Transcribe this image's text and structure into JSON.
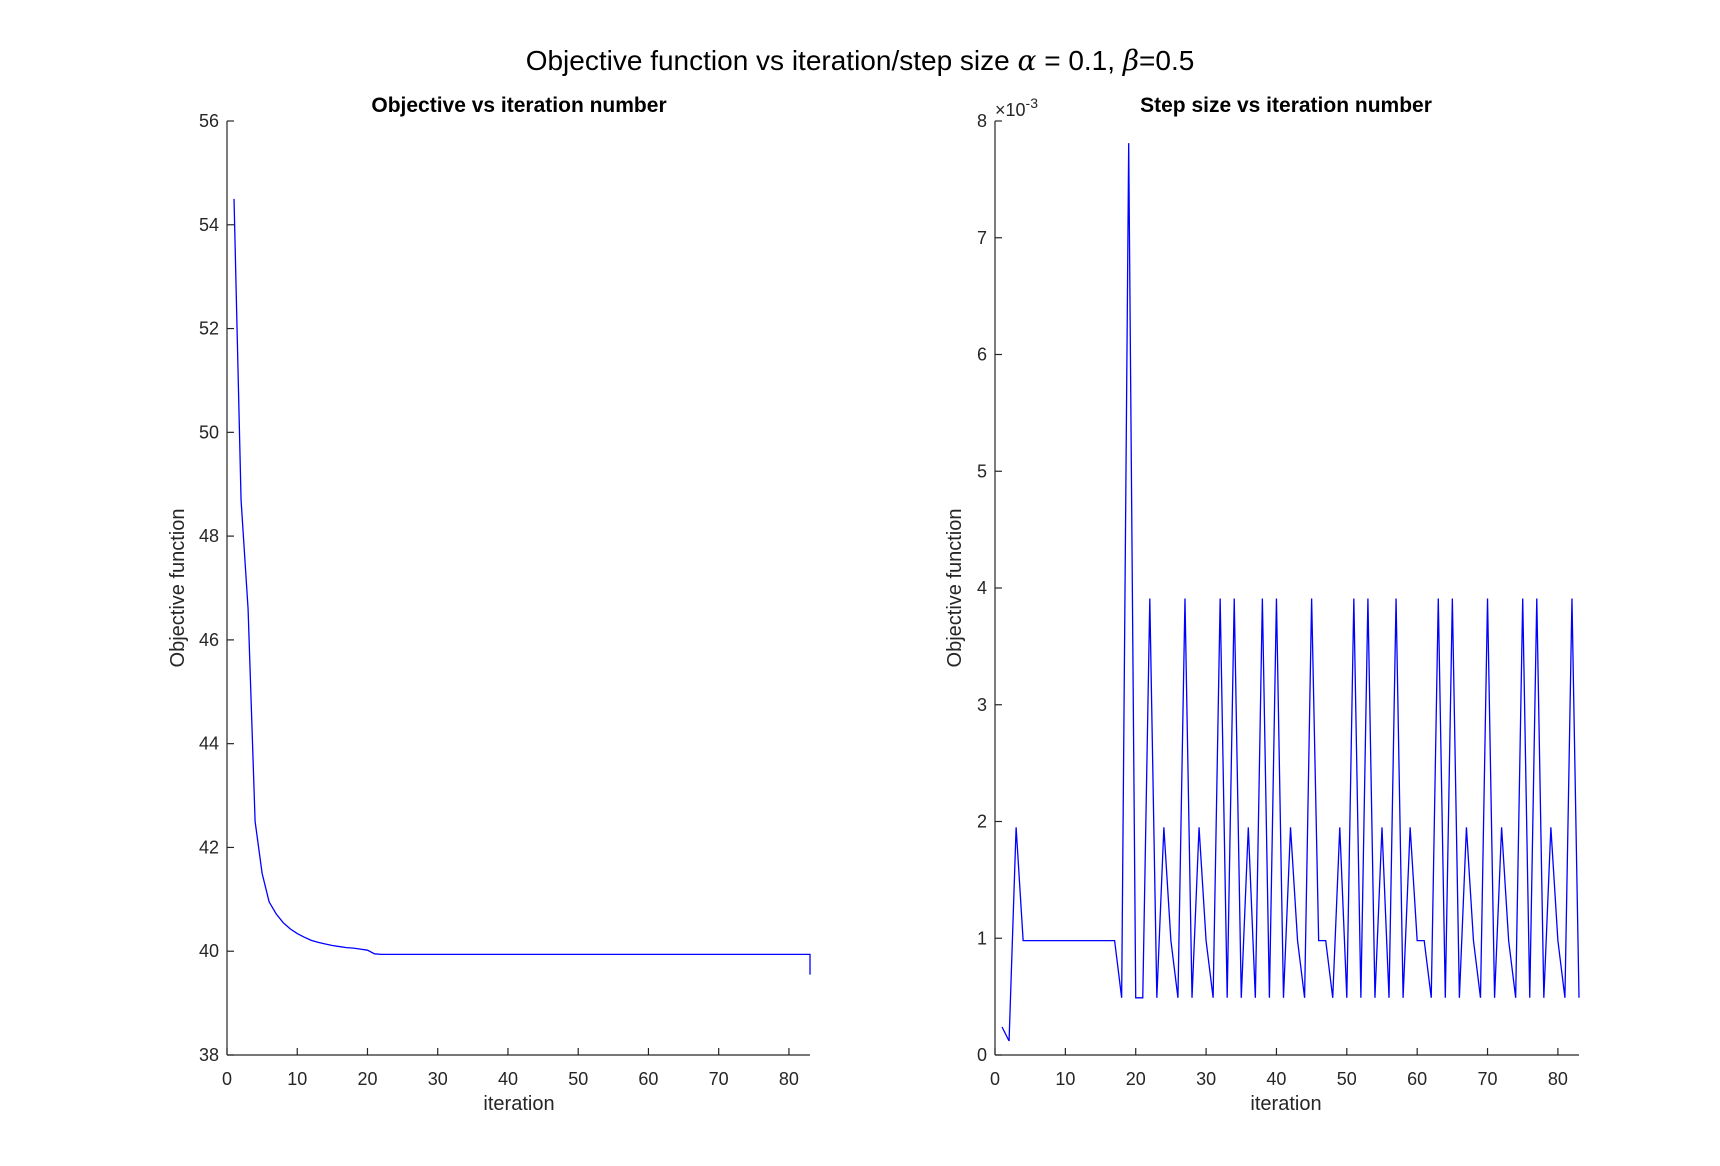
{
  "figure": {
    "title_text": "Objective function vs iteration/step size ",
    "title_alpha_symbol": "α",
    "title_alpha_value": " = 0.1, ",
    "title_beta_symbol": "β",
    "title_beta_value": "=0.5"
  },
  "chart_data": [
    {
      "type": "line",
      "title": "Objective vs iteration number",
      "xlabel": "iteration",
      "ylabel": "Objective function",
      "xlim": [
        0,
        83
      ],
      "ylim": [
        38,
        56
      ],
      "xticks": [
        0,
        10,
        20,
        30,
        40,
        50,
        60,
        70,
        80
      ],
      "yticks": [
        38,
        40,
        42,
        44,
        46,
        48,
        50,
        52,
        54,
        56
      ],
      "grid": false,
      "color": "#0000ff",
      "series": [
        {
          "x": [
            1,
            2,
            3,
            4,
            5,
            6,
            7,
            8,
            9,
            10,
            11,
            12,
            13,
            14,
            15,
            16,
            17,
            18,
            19,
            20,
            21,
            22,
            25,
            30,
            40,
            50,
            60,
            70,
            80,
            82,
            83,
            83
          ],
          "y": [
            54.5,
            48.7,
            46.6,
            42.5,
            41.5,
            40.95,
            40.72,
            40.55,
            40.43,
            40.34,
            40.27,
            40.21,
            40.17,
            40.14,
            40.11,
            40.09,
            40.07,
            40.06,
            40.04,
            40.02,
            39.95,
            39.94,
            39.94,
            39.94,
            39.94,
            39.94,
            39.94,
            39.94,
            39.94,
            39.94,
            39.94,
            39.55
          ]
        }
      ]
    },
    {
      "type": "line",
      "title": "Step size vs iteration number",
      "xlabel": "iteration",
      "ylabel": "Objective function",
      "xlim": [
        0,
        83
      ],
      "ylim": [
        0,
        8
      ],
      "xticks": [
        0,
        10,
        20,
        30,
        40,
        50,
        60,
        70,
        80
      ],
      "yticks": [
        0,
        1,
        2,
        3,
        4,
        5,
        6,
        7,
        8
      ],
      "yexponent": "-3",
      "yexponent_prefix": "×10",
      "grid": false,
      "color": "#0000ff",
      "series": [
        {
          "x": [
            1,
            2,
            3,
            4,
            5,
            6,
            7,
            8,
            9,
            10,
            11,
            12,
            13,
            14,
            15,
            16,
            17,
            18,
            19,
            20,
            21,
            22,
            23,
            24,
            25,
            26,
            27,
            28,
            29,
            30,
            31,
            32,
            33,
            34,
            35,
            36,
            37,
            38,
            39,
            40,
            41,
            42,
            43,
            44,
            45,
            46,
            47,
            48,
            49,
            50,
            51,
            52,
            53,
            54,
            55,
            56,
            57,
            58,
            59,
            60,
            61,
            62,
            63,
            64,
            65,
            66,
            67,
            68,
            69,
            70,
            71,
            72,
            73,
            74,
            75,
            76,
            77,
            78,
            79,
            80,
            81,
            82,
            83
          ],
          "y": [
            0.24,
            0.12,
            1.95,
            0.98,
            0.98,
            0.98,
            0.98,
            0.98,
            0.98,
            0.98,
            0.98,
            0.98,
            0.98,
            0.98,
            0.98,
            0.98,
            0.98,
            0.49,
            7.81,
            0.49,
            0.49,
            3.91,
            0.49,
            1.95,
            0.98,
            0.49,
            3.91,
            0.49,
            1.95,
            0.98,
            0.49,
            3.91,
            0.49,
            3.91,
            0.49,
            1.95,
            0.49,
            3.91,
            0.49,
            3.91,
            0.49,
            1.95,
            0.98,
            0.49,
            3.91,
            0.98,
            0.98,
            0.49,
            1.95,
            0.49,
            3.91,
            0.49,
            3.91,
            0.49,
            1.95,
            0.49,
            3.91,
            0.49,
            1.95,
            0.98,
            0.98,
            0.49,
            3.91,
            0.49,
            3.91,
            0.49,
            1.95,
            0.98,
            0.49,
            3.91,
            0.49,
            1.95,
            0.98,
            0.49,
            3.91,
            0.49,
            3.91,
            0.49,
            1.95,
            0.98,
            0.49,
            3.91,
            0.49
          ]
        }
      ]
    }
  ]
}
